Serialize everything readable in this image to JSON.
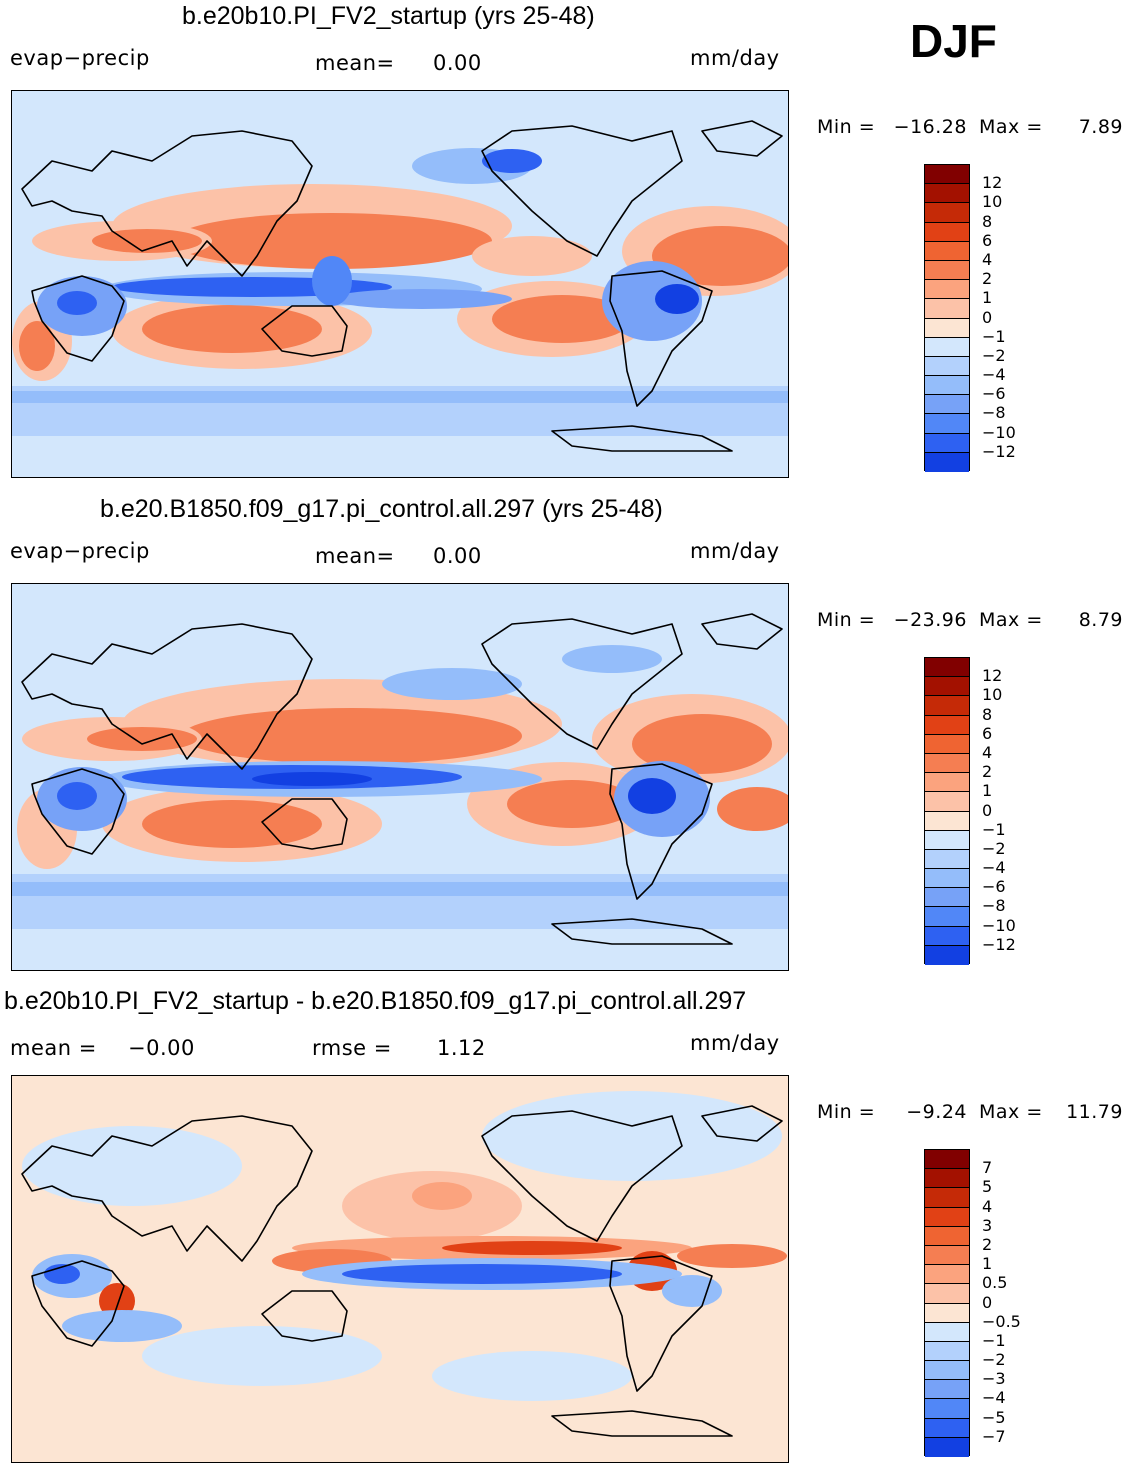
{
  "season": "DJF",
  "units": "mm/day",
  "colors": {
    "pos": [
      "#fce5d3",
      "#fcc2a8",
      "#fba37e",
      "#f57e52",
      "#ef6432",
      "#e14115",
      "#c52a07",
      "#a31100",
      "#810000"
    ],
    "neg": [
      "#d3e7fc",
      "#b3d1fc",
      "#94bdfa",
      "#77a2f7",
      "#5187f7",
      "#2e61f2",
      "#1240e2",
      "#0726be",
      "#011494",
      "#000a80"
    ]
  },
  "chart_data": [
    {
      "type": "heatmap",
      "title": "b.e20b10.PI_FV2_startup (yrs 25-48)",
      "left_label": "evap−precip",
      "stat_label": "mean=",
      "stat_value": "0.00",
      "units": "mm/day",
      "min_label": "Min  =",
      "min_value": "−16.28",
      "max_label": "Max  =",
      "max_value": "7.89",
      "colorbar_levels": [
        "12",
        "10",
        "8",
        "6",
        "4",
        "2",
        "1",
        "0",
        "−1",
        "−2",
        "−4",
        "−6",
        "−8",
        "−10",
        "−12"
      ]
    },
    {
      "type": "heatmap",
      "title": "b.e20.B1850.f09_g17.pi_control.all.297 (yrs 25-48)",
      "left_label": "evap−precip",
      "stat_label": "mean=",
      "stat_value": "0.00",
      "units": "mm/day",
      "min_label": "Min  =",
      "min_value": "−23.96",
      "max_label": "Max  =",
      "max_value": "8.79",
      "colorbar_levels": [
        "12",
        "10",
        "8",
        "6",
        "4",
        "2",
        "1",
        "0",
        "−1",
        "−2",
        "−4",
        "−6",
        "−8",
        "−10",
        "−12"
      ]
    },
    {
      "type": "heatmap",
      "title": "b.e20b10.PI_FV2_startup - b.e20.B1850.f09_g17.pi_control.all.297",
      "left_label": "mean  =",
      "left_value": "−0.00",
      "stat_label": "rmse  =",
      "stat_value": "1.12",
      "units": "mm/day",
      "min_label": "Min  =",
      "min_value": "−9.24",
      "max_label": "Max  =",
      "max_value": "11.79",
      "colorbar_levels": [
        "7",
        "5",
        "4",
        "3",
        "2",
        "1",
        "0.5",
        "0",
        "−0.5",
        "−1",
        "−2",
        "−3",
        "−4",
        "−5",
        "−7"
      ]
    }
  ]
}
